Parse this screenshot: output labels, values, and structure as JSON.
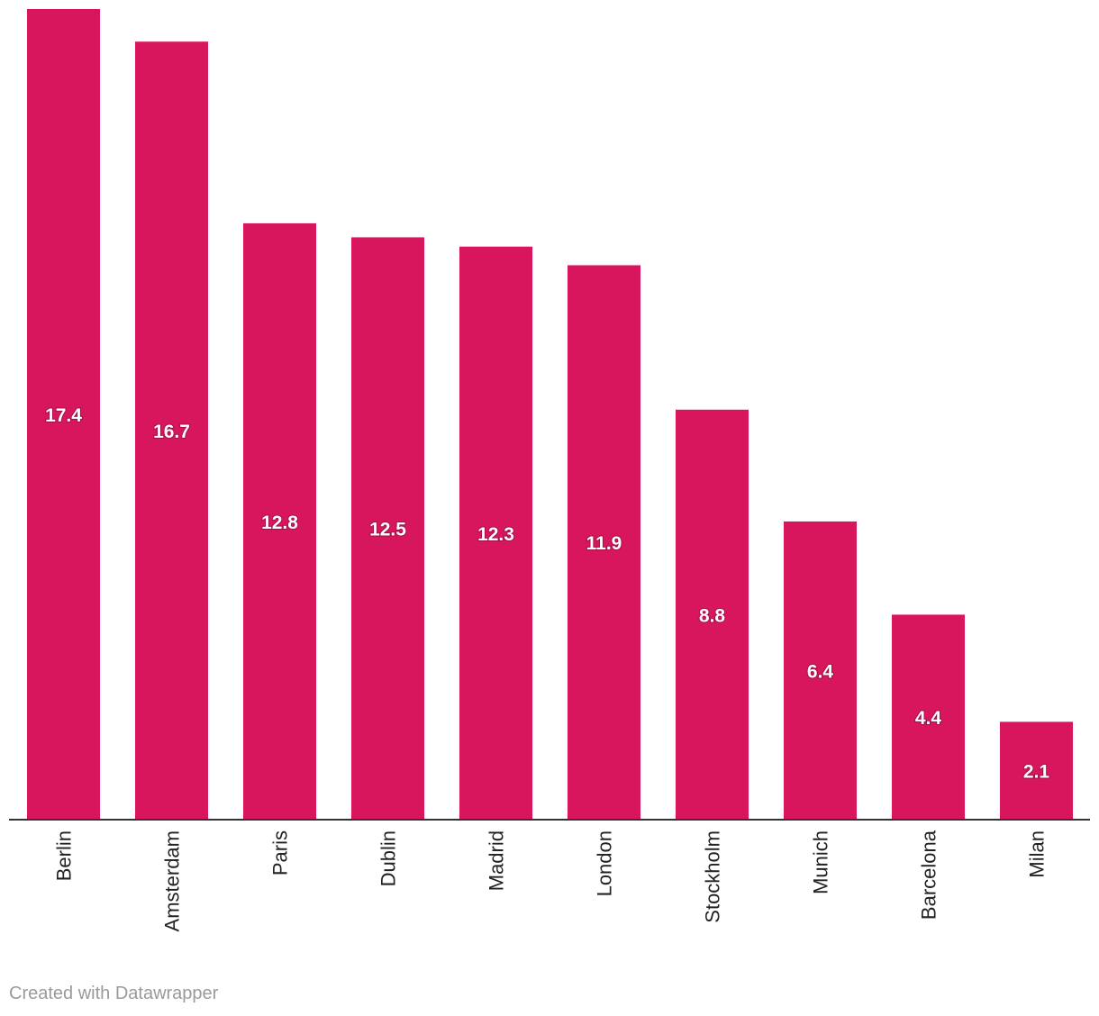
{
  "chart_data": {
    "type": "bar",
    "categories": [
      "Berlin",
      "Amsterdam",
      "Paris",
      "Dublin",
      "Madrid",
      "London",
      "Stockholm",
      "Munich",
      "Barcelona",
      "Milan"
    ],
    "values": [
      17.4,
      16.7,
      12.8,
      12.5,
      12.3,
      11.9,
      8.8,
      6.4,
      4.4,
      2.1
    ],
    "value_labels": [
      "17.4",
      "16.7",
      "12.8",
      "12.5",
      "12.3",
      "11.9",
      "8.8",
      "6.4",
      "4.4",
      "2.1"
    ],
    "bar_color": "#d8165d",
    "ylim": [
      0,
      17.4
    ],
    "grid": false,
    "legend": "none"
  },
  "footer": {
    "credit": "Created with Datawrapper"
  }
}
